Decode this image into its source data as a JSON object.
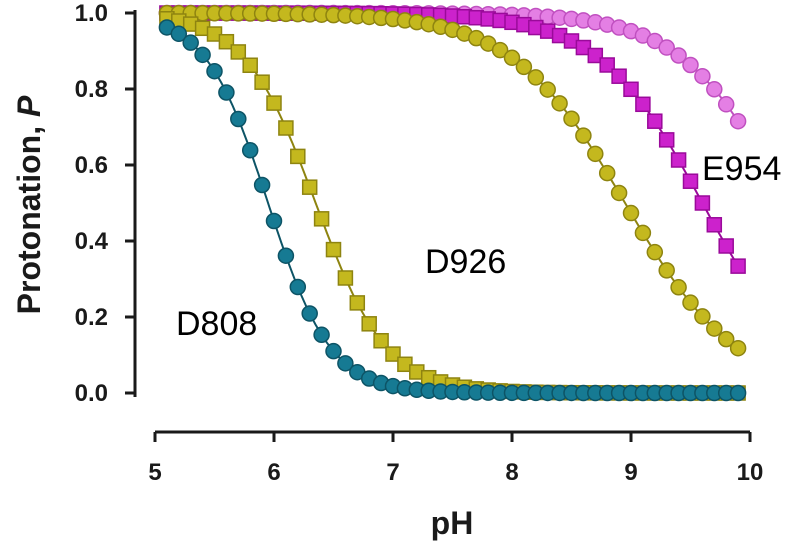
{
  "chart_data": {
    "type": "scatter",
    "xlabel": "pH",
    "ylabel_main": "Protonation, ",
    "ylabel_italic": "P",
    "xlim": [
      5,
      10
    ],
    "ylim": [
      0,
      1
    ],
    "xticks": [
      "5",
      "6",
      "7",
      "8",
      "9",
      "10"
    ],
    "yticks": [
      "0.0",
      "0.2",
      "0.4",
      "0.6",
      "0.8",
      "1.0"
    ],
    "grid": false,
    "legend": "none",
    "x_start": 5.1,
    "x_end": 9.9,
    "x_step": 0.1,
    "series": [
      {
        "name": "E954",
        "marker": "circle",
        "color": "#e47fe4",
        "stroke": "#c050c0",
        "pKa": 10.3,
        "hill": 1.0
      },
      {
        "name": "E954",
        "marker": "square",
        "color": "#cc22cc",
        "stroke": "#9a0a9a",
        "pKa": 9.6,
        "hill": 1.0
      },
      {
        "name": "D926",
        "marker": "circle",
        "color": "#c4b81e",
        "stroke": "#8e8410",
        "pKa": 8.95,
        "hill": 0.92
      },
      {
        "name": "D926",
        "marker": "square",
        "color": "#c4b81e",
        "stroke": "#8e8410",
        "pKa": 6.35,
        "hill": 1.45
      },
      {
        "name": "D808",
        "marker": "circle",
        "color": "#167a93",
        "stroke": "#0d5466",
        "pKa": 5.95,
        "hill": 1.65
      }
    ],
    "annotations": [
      {
        "text": "E954",
        "color": "#c030c0"
      },
      {
        "text": "D926",
        "color": "#9d9618"
      },
      {
        "text": "D808",
        "color": "#1a7a93"
      }
    ]
  }
}
